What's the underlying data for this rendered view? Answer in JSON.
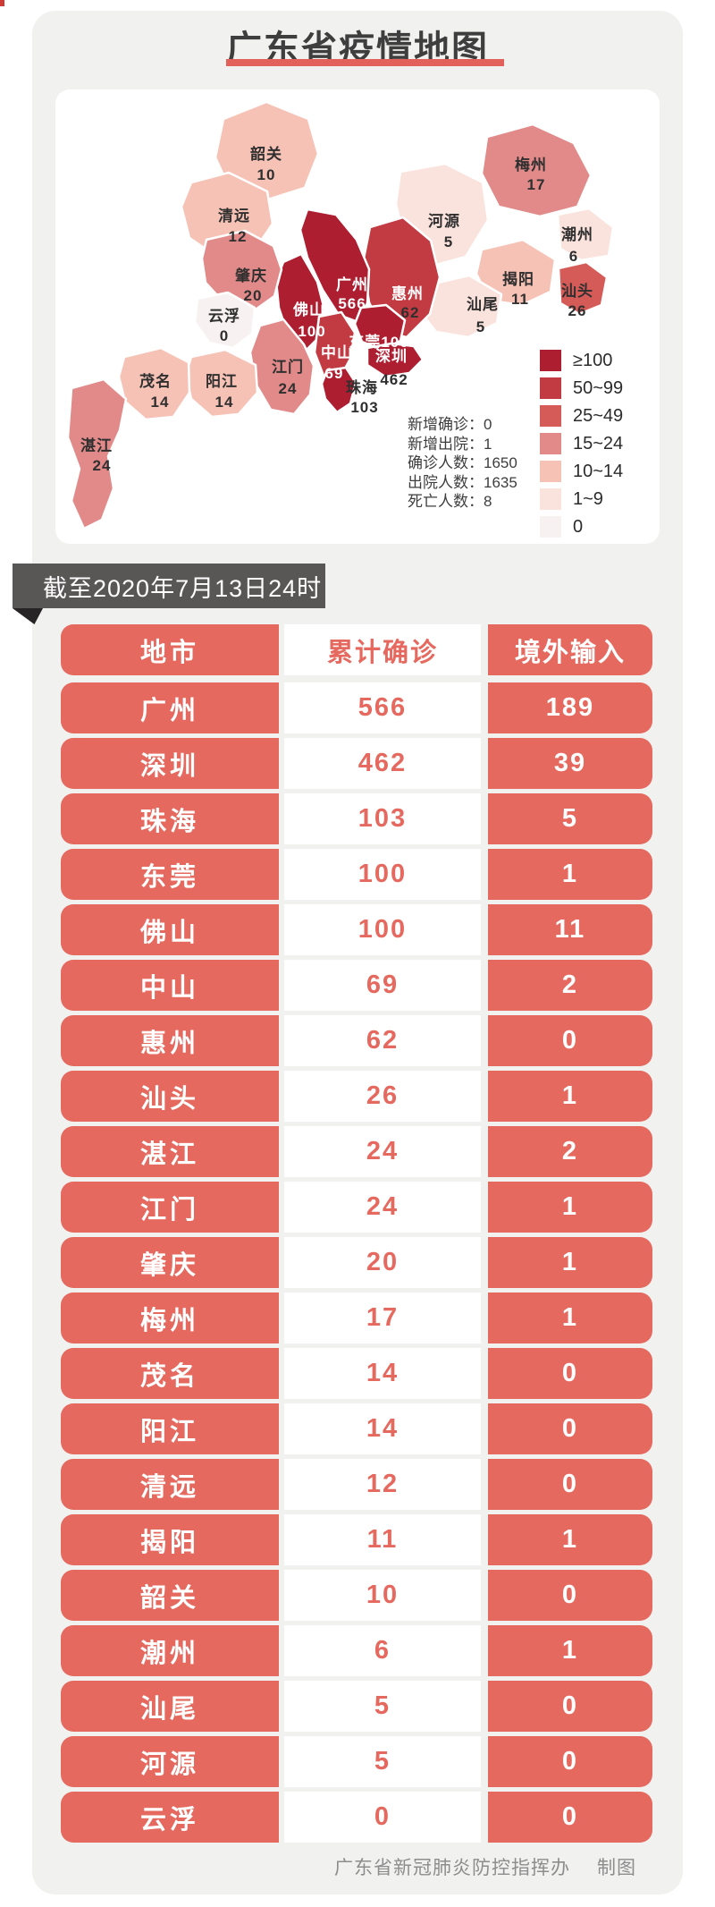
{
  "title": "广东省疫情地图",
  "banner": "截至2020年7月13日24时",
  "footer": {
    "org": "广东省新冠肺炎防控指挥办",
    "credit": "制图"
  },
  "colors": {
    "accent_red": "#e5695f",
    "title_underline": "#e2615b",
    "banner_bg": "#595656",
    "page_card_bg": "#f1f1f0"
  },
  "map": {
    "legend": {
      "items": [
        {
          "label": "≥100",
          "color": "#ae1e31"
        },
        {
          "label": "50~99",
          "color": "#c23a42"
        },
        {
          "label": "25~49",
          "color": "#d45b57"
        },
        {
          "label": "15~24",
          "color": "#e18a89"
        },
        {
          "label": "10~14",
          "color": "#f6c2b6"
        },
        {
          "label": "1~9",
          "color": "#fae2dd"
        },
        {
          "label": "0",
          "color": "#f7f2f1"
        }
      ]
    },
    "stats": {
      "items": [
        {
          "label": "新增确诊",
          "value": "0"
        },
        {
          "label": "新增出院",
          "value": "1"
        },
        {
          "label": "确诊人数",
          "value": "1650"
        },
        {
          "label": "出院人数",
          "value": "1635"
        },
        {
          "label": "死亡人数",
          "value": "8"
        }
      ]
    },
    "cities": {
      "shaoguan": {
        "name": "韶关",
        "value": "10",
        "level": 4
      },
      "qingyuan": {
        "name": "清远",
        "value": "12",
        "level": 4
      },
      "heyuan": {
        "name": "河源",
        "value": "5",
        "level": 5
      },
      "meizhou": {
        "name": "梅州",
        "value": "17",
        "level": 3
      },
      "chaozhou": {
        "name": "潮州",
        "value": "6",
        "level": 5
      },
      "jieyang": {
        "name": "揭阳",
        "value": "11",
        "level": 4
      },
      "shantou": {
        "name": "汕头",
        "value": "26",
        "level": 2
      },
      "shanwei": {
        "name": "汕尾",
        "value": "5",
        "level": 5
      },
      "huizhou": {
        "name": "惠州",
        "value": "62",
        "level": 1
      },
      "guangzhou": {
        "name": "广州",
        "value": "566",
        "level": 0
      },
      "dongguan": {
        "name": "东莞",
        "value": "100",
        "level": 0
      },
      "shenzhen": {
        "name": "深圳",
        "value": "462",
        "level": 0
      },
      "zhongshan": {
        "name": "中山",
        "value": "69",
        "level": 1
      },
      "zhuhai": {
        "name": "珠海",
        "value": "103",
        "level": 0
      },
      "foshan": {
        "name": "佛山",
        "value": "100",
        "level": 0
      },
      "jiangmen": {
        "name": "江门",
        "value": "24",
        "level": 3
      },
      "zhaoqing": {
        "name": "肇庆",
        "value": "20",
        "level": 3
      },
      "yunfu": {
        "name": "云浮",
        "value": "0",
        "level": 6
      },
      "yangjiang": {
        "name": "阳江",
        "value": "14",
        "level": 4
      },
      "maoming": {
        "name": "茂名",
        "value": "14",
        "level": 4
      },
      "zhanjiang": {
        "name": "湛江",
        "value": "24",
        "level": 3
      }
    }
  },
  "table": {
    "headers": [
      "地市",
      "累计确诊",
      "境外输入"
    ]
  },
  "chart_data": {
    "type": "table",
    "title": "广东省疫情地图",
    "as_of": "截至2020年7月13日24时",
    "columns": [
      "地市",
      "累计确诊",
      "境外输入"
    ],
    "rows": [
      [
        "广州",
        "566",
        "189"
      ],
      [
        "深圳",
        "462",
        "39"
      ],
      [
        "珠海",
        "103",
        "5"
      ],
      [
        "东莞",
        "100",
        "1"
      ],
      [
        "佛山",
        "100",
        "11"
      ],
      [
        "中山",
        "69",
        "2"
      ],
      [
        "惠州",
        "62",
        "0"
      ],
      [
        "汕头",
        "26",
        "1"
      ],
      [
        "湛江",
        "24",
        "2"
      ],
      [
        "江门",
        "24",
        "1"
      ],
      [
        "肇庆",
        "20",
        "1"
      ],
      [
        "梅州",
        "17",
        "1"
      ],
      [
        "茂名",
        "14",
        "0"
      ],
      [
        "阳江",
        "14",
        "0"
      ],
      [
        "清远",
        "12",
        "0"
      ],
      [
        "揭阳",
        "11",
        "1"
      ],
      [
        "韶关",
        "10",
        "0"
      ],
      [
        "潮州",
        "6",
        "1"
      ],
      [
        "汕尾",
        "5",
        "0"
      ],
      [
        "河源",
        "5",
        "0"
      ],
      [
        "云浮",
        "0",
        "0"
      ]
    ],
    "legend_bins": [
      "≥100",
      "50~99",
      "25~49",
      "15~24",
      "10~14",
      "1~9",
      "0"
    ],
    "summary": {
      "新增确诊": 0,
      "新增出院": 1,
      "确诊人数": 1650,
      "出院人数": 1635,
      "死亡人数": 8
    }
  }
}
